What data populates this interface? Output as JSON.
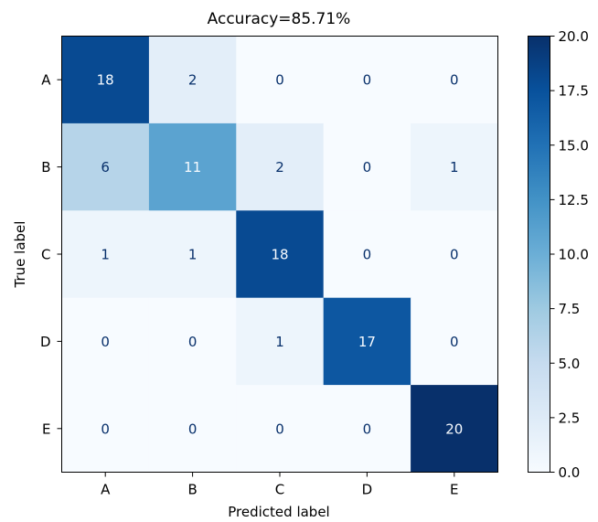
{
  "chart_data": {
    "type": "heatmap",
    "title": "Accuracy=85.71%",
    "xlabel": "Predicted label",
    "ylabel": "True label",
    "x_categories": [
      "A",
      "B",
      "C",
      "D",
      "E"
    ],
    "y_categories": [
      "A",
      "B",
      "C",
      "D",
      "E"
    ],
    "matrix": [
      [
        18,
        2,
        0,
        0,
        0
      ],
      [
        6,
        11,
        2,
        0,
        1
      ],
      [
        1,
        1,
        18,
        0,
        0
      ],
      [
        0,
        0,
        1,
        17,
        0
      ],
      [
        0,
        0,
        0,
        0,
        20
      ]
    ],
    "colorbar": {
      "range": [
        0,
        20
      ],
      "ticks": [
        "0.0",
        "2.5",
        "5.0",
        "7.5",
        "10.0",
        "12.5",
        "15.0",
        "17.5",
        "20.0"
      ],
      "colormap": "Blues"
    },
    "colors": {
      "low": "#f7fbff",
      "high": "#08306b",
      "text_dark": "#08306b",
      "text_light": "#f7fbff"
    }
  }
}
